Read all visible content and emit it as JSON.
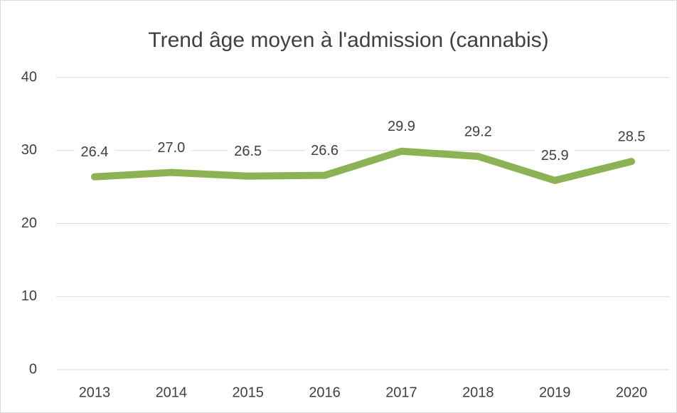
{
  "chart_data": {
    "type": "line",
    "title": "Trend âge moyen à l'admission (cannabis)",
    "categories": [
      "2013",
      "2014",
      "2015",
      "2016",
      "2017",
      "2018",
      "2019",
      "2020"
    ],
    "values": [
      26.4,
      27.0,
      26.5,
      26.6,
      29.9,
      29.2,
      25.9,
      28.5
    ],
    "value_labels": [
      "26.4",
      "27.0",
      "26.5",
      "26.6",
      "29.9",
      "29.2",
      "25.9",
      "28.5"
    ],
    "color": "#8db255",
    "ylim": [
      0,
      40
    ],
    "yticks": [
      0,
      10,
      20,
      30,
      40
    ],
    "grid": true
  }
}
